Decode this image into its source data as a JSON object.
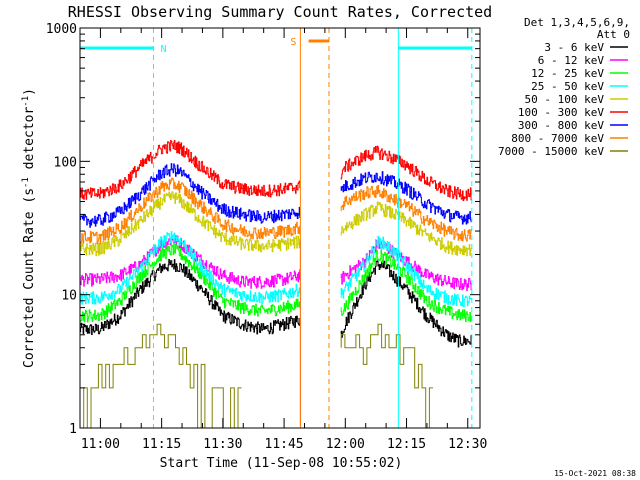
{
  "chart_data": {
    "type": "line",
    "title": "RHESSI Observing Summary Count Rates, Corrected",
    "xlabel": "Start Time (11-Sep-08 10:55:02)",
    "ylabel_main": "Corrected Count Rate (s",
    "ylabel_sup1": "-1",
    "ylabel_mid": " detector",
    "ylabel_sup2": "-1",
    "ylabel_end": ")",
    "footer": "15-Oct-2021 08:38",
    "y_scale": "log",
    "ylim": [
      1,
      1000
    ],
    "xlim": [
      "10:55",
      "12:33"
    ],
    "x_tick_labels": [
      "11:00",
      "11:15",
      "11:30",
      "11:45",
      "12:00",
      "12:15",
      "12:30"
    ],
    "y_tick_labels": [
      "1",
      "10",
      "100",
      "1000"
    ],
    "legend": {
      "placement": "right",
      "header": [
        "Det 1,3,4,5,6,9,",
        "Att 0"
      ],
      "entries": [
        {
          "label": "3 - 6 keV",
          "color": "#000000"
        },
        {
          "label": "6 - 12 keV",
          "color": "#ff00ff"
        },
        {
          "label": "12 - 25 keV",
          "color": "#00ff00"
        },
        {
          "label": "25 - 50 keV",
          "color": "#00ffff"
        },
        {
          "label": "50 - 100 keV",
          "color": "#cccc00"
        },
        {
          "label": "100 - 300 keV",
          "color": "#ff0000"
        },
        {
          "label": "300 - 800 keV",
          "color": "#0000ff"
        },
        {
          "label": "800 - 7000 keV",
          "color": "#ff8000"
        },
        {
          "label": "7000 - 15000 keV",
          "color": "#808000"
        }
      ]
    },
    "gap": [
      "11:49",
      "11:58"
    ],
    "orbit_markers": [
      {
        "label": "N",
        "color": "#00ffff",
        "shown": [
          "10:55",
          "11:13"
        ],
        "time": "11:13"
      },
      {
        "label": "S",
        "color": "#ff8000",
        "shown": [
          "11:49",
          "11:56"
        ],
        "time": "11:56"
      },
      {
        "label": "",
        "color": "#00ffff",
        "shown": [
          "12:13",
          "12:31"
        ],
        "time": "12:31"
      }
    ],
    "vertical_lines": [
      {
        "time": "10:55",
        "color": "#00ffff",
        "style": "solid"
      },
      {
        "time": "11:13",
        "color": "#00ffff",
        "style": "dashed"
      },
      {
        "time": "11:49",
        "color": "#ff8000",
        "style": "solid"
      },
      {
        "time": "11:56",
        "color": "#ff8000",
        "style": "dashed"
      },
      {
        "time": "12:13",
        "color": "#00ffff",
        "style": "solid"
      },
      {
        "time": "12:31",
        "color": "#00ffff",
        "style": "dashed"
      }
    ],
    "series": [
      {
        "name": "3 - 6 keV",
        "color": "#000000",
        "segments": [
          {
            "times": [
              "10:55",
              "11:00",
              "11:05",
              "11:10",
              "11:15",
              "11:18",
              "11:20",
              "11:25",
              "11:30",
              "11:35",
              "11:40",
              "11:45",
              "11:49"
            ],
            "values": [
              5.5,
              5.5,
              7,
              11,
              16,
              17,
              16,
              11,
              7,
              6,
              5.5,
              6,
              6.5
            ]
          },
          {
            "times": [
              "11:59",
              "12:00",
              "12:05",
              "12:08",
              "12:10",
              "12:15",
              "12:20",
              "12:25",
              "12:28",
              "12:31"
            ],
            "values": [
              5,
              6,
              12,
              17,
              16,
              11,
              7,
              5,
              4.5,
              4.5
            ]
          }
        ]
      },
      {
        "name": "6 - 12 keV",
        "color": "#ff00ff",
        "segments": [
          {
            "times": [
              "10:55",
              "11:00",
              "11:05",
              "11:10",
              "11:15",
              "11:18",
              "11:20",
              "11:25",
              "11:30",
              "11:35",
              "11:40",
              "11:45",
              "11:49"
            ],
            "values": [
              13,
              13,
              14,
              17,
              24,
              26,
              24,
              18,
              14,
              12.5,
              12.5,
              13,
              14
            ]
          },
          {
            "times": [
              "11:59",
              "12:00",
              "12:05",
              "12:08",
              "12:10",
              "12:15",
              "12:20",
              "12:25",
              "12:28",
              "12:31"
            ],
            "values": [
              13,
              14,
              18,
              24,
              23,
              18,
              14,
              12.5,
              12,
              12
            ]
          }
        ]
      },
      {
        "name": "12 - 25 keV",
        "color": "#00ff00",
        "segments": [
          {
            "times": [
              "10:55",
              "11:00",
              "11:05",
              "11:10",
              "11:15",
              "11:18",
              "11:20",
              "11:25",
              "11:30",
              "11:35",
              "11:40",
              "11:45",
              "11:49"
            ],
            "values": [
              7,
              7,
              9,
              14,
              20,
              22,
              20,
              14,
              9,
              8,
              7.5,
              8,
              8.5
            ]
          },
          {
            "times": [
              "11:59",
              "12:00",
              "12:05",
              "12:08",
              "12:10",
              "12:15",
              "12:20",
              "12:25",
              "12:28",
              "12:31"
            ],
            "values": [
              7.5,
              8,
              14,
              20,
              19,
              14,
              9,
              7.5,
              7,
              7
            ]
          }
        ]
      },
      {
        "name": "25 - 50 keV",
        "color": "#00ffff",
        "segments": [
          {
            "times": [
              "10:55",
              "11:00",
              "11:05",
              "11:10",
              "11:15",
              "11:18",
              "11:20",
              "11:25",
              "11:30",
              "11:35",
              "11:40",
              "11:45",
              "11:49"
            ],
            "values": [
              9.5,
              9.5,
              11,
              16,
              25,
              28,
              25,
              16,
              11,
              10,
              9.5,
              10,
              11
            ]
          },
          {
            "times": [
              "11:59",
              "12:00",
              "12:05",
              "12:08",
              "12:10",
              "12:15",
              "12:20",
              "12:25",
              "12:28",
              "12:31"
            ],
            "values": [
              10,
              11,
              17,
              25,
              24,
              17,
              11,
              9.5,
              9,
              9
            ]
          }
        ]
      },
      {
        "name": "50 - 100 keV",
        "color": "#cccc00",
        "segments": [
          {
            "times": [
              "10:55",
              "11:00",
              "11:05",
              "11:10",
              "11:15",
              "11:18",
              "11:20",
              "11:25",
              "11:30",
              "11:35",
              "11:40",
              "11:45",
              "11:49"
            ],
            "values": [
              22,
              22,
              26,
              36,
              50,
              55,
              50,
              36,
              27,
              24,
              23,
              24,
              25
            ]
          },
          {
            "times": [
              "11:59",
              "12:00",
              "12:05",
              "12:08",
              "12:10",
              "12:15",
              "12:20",
              "12:25",
              "12:28",
              "12:31"
            ],
            "values": [
              30,
              32,
              40,
              45,
              43,
              36,
              28,
              23,
              22,
              22
            ]
          }
        ]
      },
      {
        "name": "100 - 300 keV",
        "color": "#ff0000",
        "segments": [
          {
            "times": [
              "10:55",
              "11:00",
              "11:05",
              "11:10",
              "11:15",
              "11:18",
              "11:20",
              "11:25",
              "11:30",
              "11:35",
              "11:40",
              "11:45",
              "11:49"
            ],
            "values": [
              57,
              57,
              66,
              92,
              125,
              132,
              125,
              90,
              68,
              62,
              60,
              62,
              65
            ]
          },
          {
            "times": [
              "11:59",
              "12:00",
              "12:05",
              "12:08",
              "12:10",
              "12:15",
              "12:20",
              "12:25",
              "12:28",
              "12:31"
            ],
            "values": [
              80,
              90,
              110,
              118,
              112,
              95,
              72,
              60,
              57,
              57
            ]
          }
        ]
      },
      {
        "name": "300 - 800 keV",
        "color": "#0000ff",
        "segments": [
          {
            "times": [
              "10:55",
              "11:00",
              "11:05",
              "11:10",
              "11:15",
              "11:18",
              "11:20",
              "11:25",
              "11:30",
              "11:35",
              "11:40",
              "11:45",
              "11:49"
            ],
            "values": [
              36,
              36,
              42,
              58,
              82,
              88,
              82,
              58,
              44,
              40,
              38,
              40,
              42
            ]
          },
          {
            "times": [
              "11:59",
              "12:00",
              "12:05",
              "12:08",
              "12:10",
              "12:15",
              "12:20",
              "12:25",
              "12:28",
              "12:31"
            ],
            "values": [
              60,
              65,
              75,
              78,
              74,
              63,
              48,
              40,
              38,
              38
            ]
          }
        ]
      },
      {
        "name": "800 - 7000 keV",
        "color": "#ff8000",
        "segments": [
          {
            "times": [
              "10:55",
              "11:00",
              "11:05",
              "11:10",
              "11:15",
              "11:18",
              "11:20",
              "11:25",
              "11:30",
              "11:35",
              "11:40",
              "11:45",
              "11:49"
            ],
            "values": [
              27,
              27,
              32,
              46,
              64,
              68,
              64,
              46,
              34,
              30,
              29,
              30,
              32
            ]
          },
          {
            "times": [
              "11:59",
              "12:00",
              "12:05",
              "12:08",
              "12:10",
              "12:15",
              "12:20",
              "12:25",
              "12:28",
              "12:31"
            ],
            "values": [
              45,
              50,
              58,
              60,
              56,
              47,
              36,
              30,
              28,
              28
            ]
          }
        ]
      },
      {
        "name": "7000 - 15000 keV",
        "color": "#808000",
        "segments": [
          {
            "times": [
              "10:55",
              "11:00",
              "11:05",
              "11:10",
              "11:15",
              "11:18",
              "11:20",
              "11:25",
              "11:30",
              "11:35"
            ],
            "values": [
              1,
              2,
              3,
              4,
              5,
              5,
              4,
              2,
              1.5,
              1
            ]
          },
          {
            "times": [
              "11:59",
              "12:00",
              "12:05",
              "12:08",
              "12:10",
              "12:15",
              "12:20",
              "12:22"
            ],
            "values": [
              4,
              4,
              4,
              5,
              5,
              4,
              2,
              1
            ]
          }
        ]
      }
    ]
  }
}
